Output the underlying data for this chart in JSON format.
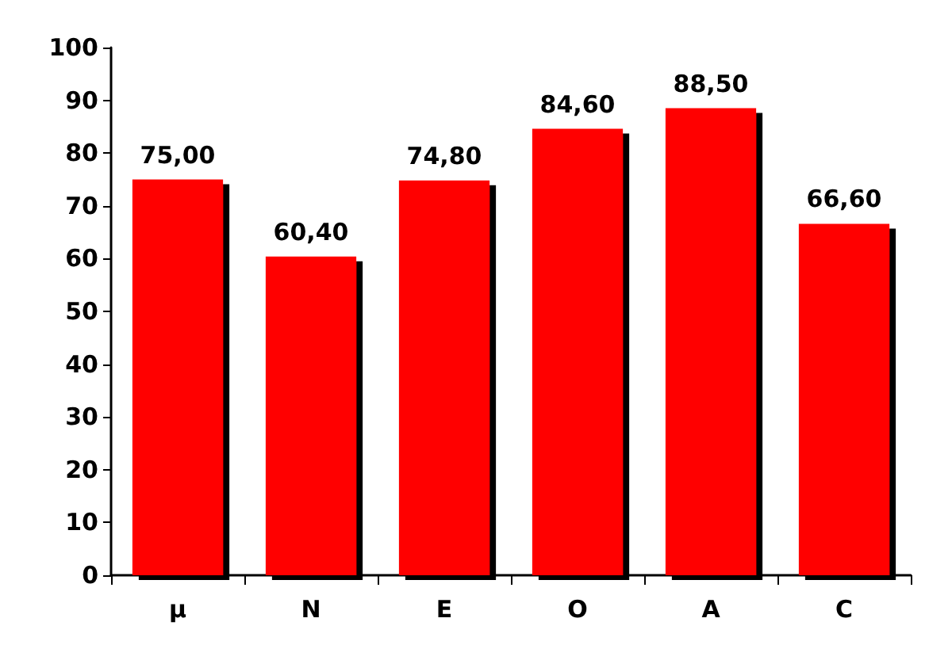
{
  "chart_data": {
    "type": "bar",
    "categories": [
      "μ",
      "N",
      "E",
      "O",
      "A",
      "C"
    ],
    "values": [
      75.0,
      60.4,
      74.8,
      84.6,
      88.5,
      66.6
    ],
    "value_labels": [
      "75,00",
      "60,40",
      "74,80",
      "84,60",
      "88,50",
      "66,60"
    ],
    "color": "#ff0000",
    "ylim": [
      0,
      100
    ],
    "yticks": [
      0,
      10,
      20,
      30,
      40,
      50,
      60,
      70,
      80,
      90,
      100
    ]
  }
}
